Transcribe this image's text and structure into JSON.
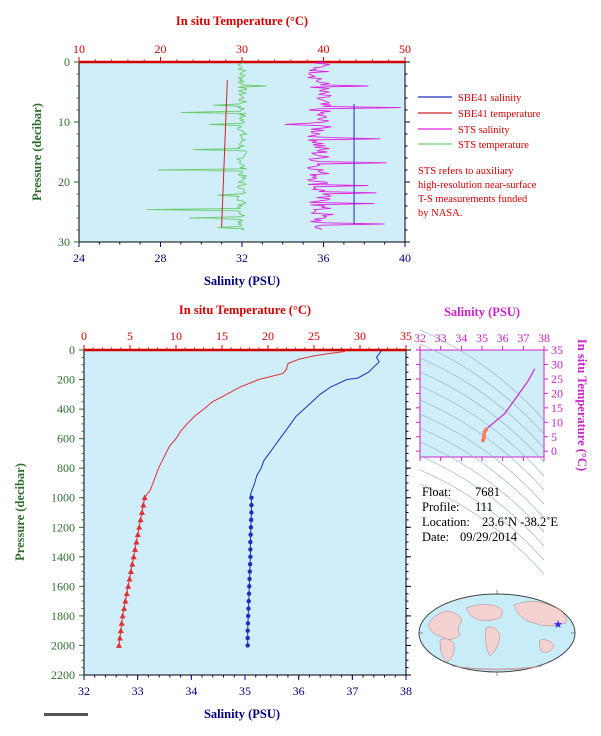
{
  "chart_data": [
    {
      "name": "upper-profile",
      "type": "line",
      "top_axis": {
        "label": "In situ Temperature (°C)",
        "ticks": [
          10,
          20,
          30,
          40,
          50
        ],
        "range": [
          10,
          50
        ]
      },
      "bottom_axis": {
        "label": "Salinity (PSU)",
        "ticks": [
          24,
          28,
          32,
          36,
          40
        ],
        "range": [
          24,
          40
        ]
      },
      "left_axis": {
        "label": "Pressure (decibar)",
        "ticks": [
          0,
          10,
          20,
          30
        ],
        "range": [
          0,
          30
        ],
        "inverted": true
      },
      "legend": [
        {
          "label": "SBE41 salinity",
          "color": "#1a2fbf"
        },
        {
          "label": "SBE41 temperature",
          "color": "#cc2222"
        },
        {
          "label": "STS salinity",
          "color": "#e020e0"
        },
        {
          "label": "STS temperature",
          "color": "#66cc66"
        }
      ],
      "note": [
        "STS refers to auxiliary",
        "high-resolution near-surface",
        "T-S measurements funded",
        "by NASA."
      ],
      "series": [
        {
          "name": "SBE41 salinity",
          "axis": "salinity",
          "points": [
            [
              37.5,
              7
            ],
            [
              37.5,
              27
            ]
          ]
        },
        {
          "name": "SBE41 temperature",
          "axis": "temperature",
          "points": [
            [
              28.2,
              3
            ],
            [
              27.5,
              27.5
            ]
          ]
        },
        {
          "name": "STS salinity",
          "axis": "salinity",
          "base": 35.8,
          "spread": 0.6,
          "pressure_range": [
            0,
            28
          ],
          "spikes": [
            [
              4,
              38.2
            ],
            [
              7.5,
              39.8
            ],
            [
              10.3,
              34.1
            ],
            [
              12.8,
              38.8
            ],
            [
              16.8,
              39.1
            ],
            [
              18,
              36
            ],
            [
              20.5,
              38.2
            ],
            [
              21.7,
              38.6
            ],
            [
              23.5,
              38.5
            ],
            [
              25.3,
              36.5
            ],
            [
              27,
              39
            ]
          ]
        },
        {
          "name": "STS temperature",
          "axis": "temperature",
          "base": 30,
          "spread": 0.6,
          "pressure_range": [
            0,
            28
          ],
          "spikes": [
            [
              4,
              33
            ],
            [
              7.2,
              26.5
            ],
            [
              8.4,
              22.5
            ],
            [
              10.3,
              26
            ],
            [
              14.5,
              24
            ],
            [
              18,
              19.7
            ],
            [
              22.1,
              27
            ],
            [
              24.5,
              18.3
            ],
            [
              26,
              23.5
            ],
            [
              27.5,
              27
            ]
          ]
        }
      ]
    },
    {
      "name": "lower-profile",
      "type": "line",
      "top_axis": {
        "label": "In situ Temperature (°C)",
        "ticks": [
          0,
          5,
          10,
          15,
          20,
          25,
          30,
          35
        ],
        "range": [
          0,
          35
        ]
      },
      "bottom_axis": {
        "label": "Salinity (PSU)",
        "ticks": [
          32,
          33,
          34,
          35,
          36,
          37,
          38
        ],
        "range": [
          32,
          38
        ]
      },
      "left_axis": {
        "label": "Pressure (decibar)",
        "ticks": [
          0,
          200,
          400,
          600,
          800,
          1000,
          1200,
          1400,
          1600,
          1800,
          2000,
          2200
        ],
        "range": [
          0,
          2200
        ],
        "inverted": true
      },
      "series": [
        {
          "name": "temperature",
          "axis": "temperature",
          "color": "#e03030",
          "points": [
            [
              28.5,
              0
            ],
            [
              28.3,
              10
            ],
            [
              26.5,
              25
            ],
            [
              25,
              40
            ],
            [
              23.5,
              60
            ],
            [
              22.2,
              90
            ],
            [
              22.0,
              130
            ],
            [
              21.6,
              160
            ],
            [
              19,
              200
            ],
            [
              17,
              250
            ],
            [
              15.5,
              300
            ],
            [
              14,
              350
            ],
            [
              13,
              400
            ],
            [
              12,
              450
            ],
            [
              11.2,
              500
            ],
            [
              10.5,
              550
            ],
            [
              10,
              600
            ],
            [
              9.3,
              650
            ],
            [
              8.9,
              700
            ],
            [
              8.5,
              750
            ],
            [
              8.1,
              800
            ],
            [
              7.8,
              850
            ],
            [
              7.5,
              900
            ],
            [
              7.2,
              950
            ],
            [
              6.8,
              980
            ],
            [
              6.6,
              1000
            ],
            [
              6.3,
              1100
            ],
            [
              6.0,
              1200
            ],
            [
              5.7,
              1300
            ],
            [
              5.4,
              1400
            ],
            [
              5.1,
              1500
            ],
            [
              4.8,
              1600
            ],
            [
              4.5,
              1700
            ],
            [
              4.2,
              1800
            ],
            [
              4.0,
              1900
            ],
            [
              3.8,
              2000
            ]
          ]
        },
        {
          "name": "salinity",
          "axis": "salinity",
          "color": "#1a2fbf",
          "points": [
            [
              37.55,
              0
            ],
            [
              37.45,
              50
            ],
            [
              37.5,
              80
            ],
            [
              37.3,
              150
            ],
            [
              37.1,
              190
            ],
            [
              36.9,
              200
            ],
            [
              36.6,
              250
            ],
            [
              36.4,
              300
            ],
            [
              36.25,
              350
            ],
            [
              36.1,
              400
            ],
            [
              35.95,
              450
            ],
            [
              35.85,
              500
            ],
            [
              35.75,
              550
            ],
            [
              35.65,
              600
            ],
            [
              35.55,
              650
            ],
            [
              35.45,
              700
            ],
            [
              35.35,
              750
            ],
            [
              35.3,
              800
            ],
            [
              35.22,
              850
            ],
            [
              35.18,
              900
            ],
            [
              35.13,
              950
            ],
            [
              35.1,
              980
            ],
            [
              35.12,
              1000
            ],
            [
              35.12,
              1100
            ],
            [
              35.11,
              1200
            ],
            [
              35.1,
              1300
            ],
            [
              35.1,
              1400
            ],
            [
              35.09,
              1500
            ],
            [
              35.08,
              1600
            ],
            [
              35.07,
              1700
            ],
            [
              35.06,
              1800
            ],
            [
              35.05,
              1900
            ],
            [
              35.05,
              2000
            ]
          ]
        }
      ],
      "temperature_markers_from": 1000,
      "salinity_markers_from": 1000,
      "marker_step": 50
    },
    {
      "name": "ts-diagram",
      "type": "line",
      "top_axis": {
        "label": "Salinity (PSU)",
        "ticks": [
          32,
          33,
          34,
          35,
          36,
          37,
          38
        ],
        "range": [
          32,
          38
        ]
      },
      "right_axis": {
        "label": "In situ Temperature (°C)",
        "ticks": [
          0,
          5,
          10,
          15,
          20,
          25,
          30,
          35
        ],
        "range": [
          -2,
          35
        ]
      },
      "color": "#cc22cc",
      "points": [
        [
          37.55,
          28.5
        ],
        [
          37.4,
          26.5
        ],
        [
          37.2,
          24
        ],
        [
          36.8,
          20
        ],
        [
          36.5,
          17
        ],
        [
          36.1,
          13
        ],
        [
          35.8,
          11.2
        ],
        [
          35.55,
          9.8
        ],
        [
          35.35,
          8.5
        ],
        [
          35.2,
          7.5
        ],
        [
          35.12,
          6.6
        ],
        [
          35.1,
          5.4
        ],
        [
          35.08,
          4.5
        ],
        [
          35.05,
          3.8
        ]
      ]
    }
  ],
  "float_info": {
    "float_label": "Float:",
    "float_value": "7681",
    "profile_label": "Profile:",
    "profile_value": "111",
    "location_label": "Location:",
    "location_value": "23.6˚N  -38.2˚E",
    "date_label": "Date:",
    "date_value": "09/29/2014"
  },
  "map": {
    "marker": "star-icon",
    "marker_color": "#2a2aff"
  },
  "colors": {
    "plot_bg": "#d0eefa",
    "axis_red": "#d40000",
    "axis_green": "#2e6e2e",
    "axis_blue": "#000080",
    "axis_magenta": "#cc22cc"
  }
}
